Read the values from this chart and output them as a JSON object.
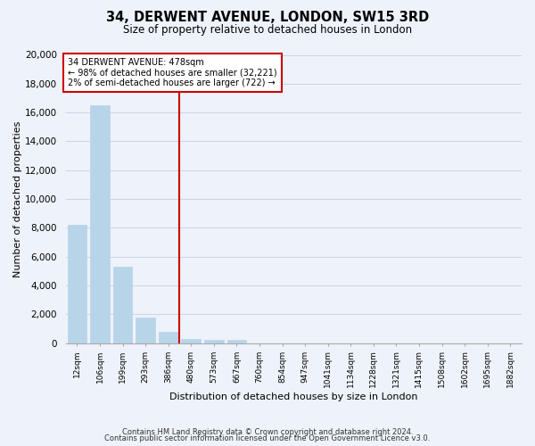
{
  "title": "34, DERWENT AVENUE, LONDON, SW15 3RD",
  "subtitle": "Size of property relative to detached houses in London",
  "bar_values": [
    8200,
    16500,
    5300,
    1800,
    800,
    300,
    200,
    200,
    0,
    0,
    0,
    0,
    0,
    0,
    0,
    0,
    0,
    0,
    0,
    0
  ],
  "categories": [
    "12sqm",
    "106sqm",
    "199sqm",
    "293sqm",
    "386sqm",
    "480sqm",
    "573sqm",
    "667sqm",
    "760sqm",
    "854sqm",
    "947sqm",
    "1041sqm",
    "1134sqm",
    "1228sqm",
    "1321sqm",
    "1415sqm",
    "1508sqm",
    "1602sqm",
    "1695sqm",
    "1882sqm"
  ],
  "bar_color": "#b8d4e8",
  "bar_edge_color": "#b8d4e8",
  "vline_x": 4.5,
  "vline_color": "#cc0000",
  "annotation_text": "34 DERWENT AVENUE: 478sqm\n← 98% of detached houses are smaller (32,221)\n2% of semi-detached houses are larger (722) →",
  "annotation_box_facecolor": "white",
  "annotation_box_edgecolor": "#cc0000",
  "xlabel": "Distribution of detached houses by size in London",
  "ylabel": "Number of detached properties",
  "ylim": [
    0,
    20000
  ],
  "yticks": [
    0,
    2000,
    4000,
    6000,
    8000,
    10000,
    12000,
    14000,
    16000,
    18000,
    20000
  ],
  "footer_line1": "Contains HM Land Registry data © Crown copyright and database right 2024.",
  "footer_line2": "Contains public sector information licensed under the Open Government Licence v3.0.",
  "grid_color": "#c8d4e8",
  "background_color": "#eef2fa",
  "plot_background": "#eef2fa"
}
